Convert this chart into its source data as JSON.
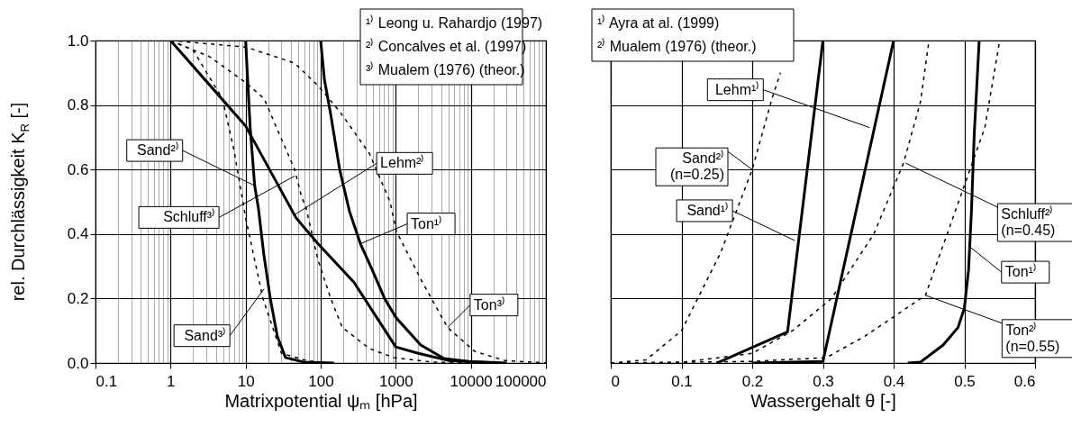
{
  "chart_data": [
    {
      "type": "line",
      "xlabel": "Matrixpotential ψₘ [hPa]",
      "ylabel": "rel. Durchlässigkeit K$_{R}$ [-]",
      "log": "x",
      "xlim": [
        0.1,
        100000
      ],
      "ylim": [
        0,
        1
      ],
      "xticks": [
        0.1,
        1,
        10,
        100,
        1000,
        10000,
        100000
      ],
      "yticks": [
        {
          "value": 0,
          "label": "0.0"
        },
        {
          "value": 0.2,
          "label": "0.2"
        },
        {
          "value": 0.4,
          "label": "0.4"
        },
        {
          "value": 0.6,
          "label": "0.6"
        },
        {
          "value": 0.8,
          "label": "0.8"
        },
        {
          "value": 1,
          "label": "1.0"
        }
      ],
      "grid": true,
      "annotations": [
        "¹⁾ Leong u. Rahardjo (1997)",
        "²⁾ Concalves et al. (1997)",
        "³⁾ Mualem (1976) (theor.)",
        {
          "text": "Sand²⁾",
          "x": 13.2,
          "y": 0.55
        },
        {
          "text": "Lehm²⁾",
          "x": 45,
          "y": 0.46
        },
        {
          "text": "Schluff³⁾",
          "x": 45,
          "y": 0.58
        },
        {
          "text": "Ton¹⁾",
          "x": 338,
          "y": 0.37
        },
        {
          "text": "Sand³⁾",
          "x": 17.6,
          "y": 0.23
        },
        {
          "text": "Ton³⁾",
          "x": 4900,
          "y": 0.11
        }
      ],
      "series": [
        {
          "color": "#000000",
          "line_style": "solid",
          "x": [
            10,
            11.5,
            13.2,
            14.8,
            17.4,
            21.3,
            26.4,
            34,
            59,
            150
          ],
          "values": [
            1,
            0.73,
            0.55,
            0.48,
            0.34,
            0.2,
            0.084,
            0.017,
            0.003,
            0
          ]
        },
        {
          "color": "#000000",
          "line_style": "solid",
          "x": [
            1,
            10,
            47,
            92,
            278,
            1000,
            2000,
            5000,
            20000
          ],
          "values": [
            1,
            0.735,
            0.45,
            0.37,
            0.25,
            0.05,
            0.03,
            0.008,
            0
          ]
        },
        {
          "color": "#000000",
          "line_style": "solid",
          "x": [
            100,
            112,
            136,
            179,
            242,
            338,
            483,
            710,
            1014,
            2150,
            4400,
            9400,
            30000
          ],
          "values": [
            1,
            0.88,
            0.77,
            0.6,
            0.47,
            0.37,
            0.29,
            0.2,
            0.14,
            0.056,
            0.014,
            0.005,
            0
          ]
        },
        {
          "color": "#000000",
          "line_style": "dashed",
          "x": [
            1,
            2,
            4.9,
            7,
            10,
            17,
            30,
            60,
            100
          ],
          "values": [
            1,
            0.97,
            0.82,
            0.66,
            0.45,
            0.2,
            0.03,
            0.01,
            0
          ]
        },
        {
          "color": "#000000",
          "line_style": "dashed",
          "x": [
            1,
            3.3,
            10,
            17.6,
            45,
            55,
            64,
            92,
            136,
            194,
            445,
            935,
            3000,
            10000
          ],
          "values": [
            1,
            0.95,
            0.87,
            0.82,
            0.6,
            0.52,
            0.48,
            0.32,
            0.2,
            0.11,
            0.045,
            0.017,
            0.003,
            0
          ]
        },
        {
          "color": "#000000",
          "line_style": "dashed",
          "x": [
            1,
            10,
            45,
            92,
            179,
            445,
            840,
            1014,
            2150,
            4900,
            11300,
            28000,
            100000
          ],
          "values": [
            1,
            0.98,
            0.93,
            0.86,
            0.78,
            0.65,
            0.5,
            0.41,
            0.26,
            0.11,
            0.036,
            0.008,
            0
          ]
        }
      ]
    },
    {
      "type": "line",
      "xlabel": "Wassergehalt θ [-]",
      "xlim": [
        0,
        0.6
      ],
      "ylim": [
        0,
        1
      ],
      "xticks": [
        0,
        0.1,
        0.2,
        0.3,
        0.4,
        0.5,
        0.6
      ],
      "yticks": [
        0,
        0.2,
        0.4,
        0.6,
        0.8,
        1
      ],
      "grid": true,
      "tick_labels": "x",
      "annotations": [
        "¹⁾ Ayra at al. (1999)",
        "²⁾ Mualem (1976) (theor.)",
        {
          "text": "Lehm¹⁾",
          "x": 0.366,
          "y": 0.73
        },
        {
          "text": "Sand²⁾\n(n=0.25)",
          "x": 0.2,
          "y": 0.6
        },
        {
          "text": "Sand¹⁾",
          "x": 0.26,
          "y": 0.38
        },
        {
          "text": "Schluff²⁾\n(n=0.45)",
          "x": 0.417,
          "y": 0.62
        },
        {
          "text": "Ton¹⁾",
          "x": 0.508,
          "y": 0.36
        },
        {
          "text": "Ton²⁾\n(n=0.55)",
          "x": 0.445,
          "y": 0.21
        }
      ],
      "series": [
        {
          "color": "#000000",
          "line_style": "solid",
          "x": [
            0.2,
            0.3,
            0.4
          ],
          "values": [
            0,
            0.005,
            1
          ]
        },
        {
          "color": "#000000",
          "line_style": "solid",
          "x": [
            0.15,
            0.25,
            0.3
          ],
          "values": [
            0,
            0.097,
            1
          ]
        },
        {
          "color": "#000000",
          "line_style": "solid",
          "x": [
            0.42,
            0.438,
            0.47,
            0.491,
            0.5,
            0.506,
            0.51,
            0.514,
            0.521
          ],
          "values": [
            0,
            0.003,
            0.056,
            0.11,
            0.17,
            0.29,
            0.47,
            0.71,
            1
          ]
        },
        {
          "color": "#000000",
          "line_style": "dashed",
          "x": [
            0,
            0.05,
            0.1,
            0.155,
            0.2,
            0.228,
            0.24
          ],
          "values": [
            0,
            0.01,
            0.1,
            0.34,
            0.6,
            0.82,
            0.9
          ]
        },
        {
          "color": "#000000",
          "line_style": "dashed",
          "x": [
            0,
            0.1,
            0.2,
            0.257,
            0.312,
            0.372,
            0.414,
            0.438,
            0.45
          ],
          "values": [
            0,
            0.002,
            0.03,
            0.1,
            0.2,
            0.4,
            0.62,
            0.81,
            1
          ]
        },
        {
          "color": "#000000",
          "line_style": "dashed",
          "x": [
            0,
            0.2,
            0.305,
            0.36,
            0.445,
            0.487,
            0.529,
            0.55
          ],
          "values": [
            0,
            0.005,
            0.017,
            0.084,
            0.21,
            0.47,
            0.73,
            1
          ]
        }
      ]
    }
  ]
}
